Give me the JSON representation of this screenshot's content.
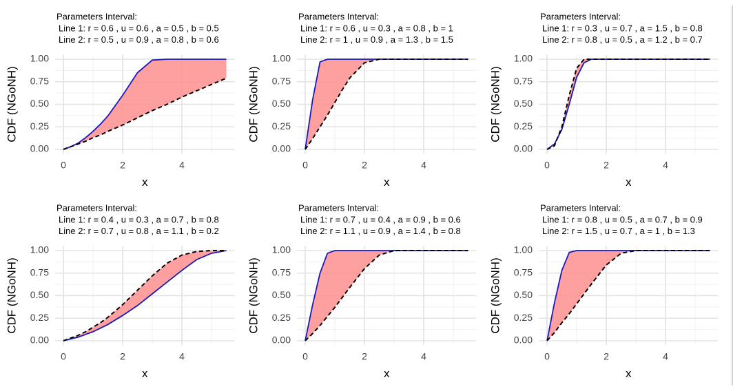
{
  "chart_data": [
    {
      "type": "line",
      "title": "Parameters Interval:",
      "subtitle_lines": [
        "Line 1: r = 0.6 , u = 0.6 , a = 0.5 , b = 0.5",
        "Line 2: r = 0.5 , u = 0.9 , a = 0.8 , b = 0.6"
      ],
      "xlabel": "x",
      "ylabel": "CDF (NGoNH)",
      "x": [
        0,
        0.25,
        0.5,
        0.75,
        1,
        1.25,
        1.5,
        2,
        2.5,
        3,
        3.5,
        4,
        4.5,
        5,
        5.5
      ],
      "series": [
        {
          "color": "#1a1ab8",
          "line_style": "solid",
          "values": [
            0,
            0.03,
            0.07,
            0.13,
            0.2,
            0.28,
            0.37,
            0.6,
            0.85,
            0.99,
            1,
            1,
            1,
            1,
            1
          ]
        },
        {
          "color": "#000000",
          "line_style": "dashed",
          "values": [
            0,
            0.03,
            0.06,
            0.09,
            0.13,
            0.16,
            0.2,
            0.27,
            0.35,
            0.43,
            0.5,
            0.58,
            0.65,
            0.72,
            0.79
          ]
        }
      ],
      "fill_color": "#ff8f8f",
      "xlim": [
        -0.275,
        5.775
      ],
      "ylim": [
        -0.05,
        1.05
      ],
      "xticks": [
        0,
        2,
        4
      ],
      "yticks": [
        {
          "value": 0,
          "label": "0.00"
        },
        {
          "value": 0.25,
          "label": "0.25"
        },
        {
          "value": 0.5,
          "label": "0.50"
        },
        {
          "value": 0.75,
          "label": "0.75"
        },
        {
          "value": 1,
          "label": "1.00"
        }
      ],
      "grid": true
    },
    {
      "type": "line",
      "title": "Parameters Interval:",
      "subtitle_lines": [
        "Line 1: r = 0.6 , u = 0.3 , a = 0.8 , b = 1",
        "Line 2: r = 1 , u = 0.9 , a = 1.3 , b = 1.5"
      ],
      "xlabel": "x",
      "ylabel": "CDF (NGoNH)",
      "x": [
        0,
        0.25,
        0.5,
        0.75,
        1,
        1.25,
        1.5,
        2,
        2.5,
        3,
        3.5,
        4,
        4.5,
        5,
        5.5
      ],
      "series": [
        {
          "color": "#1a1ab8",
          "line_style": "solid",
          "values": [
            0,
            0.55,
            0.97,
            1,
            1,
            1,
            1,
            1,
            1,
            1,
            1,
            1,
            1,
            1,
            1
          ]
        },
        {
          "color": "#000000",
          "line_style": "dashed",
          "values": [
            0,
            0.12,
            0.25,
            0.38,
            0.52,
            0.66,
            0.79,
            0.96,
            1,
            1,
            1,
            1,
            1,
            1,
            1
          ]
        }
      ],
      "fill_color": "#ff8f8f",
      "xlim": [
        -0.275,
        5.775
      ],
      "ylim": [
        -0.05,
        1.05
      ],
      "xticks": [
        0,
        2,
        4
      ],
      "yticks": [
        {
          "value": 0,
          "label": "0.00"
        },
        {
          "value": 0.25,
          "label": "0.25"
        },
        {
          "value": 0.5,
          "label": "0.50"
        },
        {
          "value": 0.75,
          "label": "0.75"
        },
        {
          "value": 1,
          "label": "1.00"
        }
      ],
      "grid": true
    },
    {
      "type": "line",
      "title": "Parameters Interval:",
      "subtitle_lines": [
        "Line 1: r = 0.3 , u = 0.7 , a = 1.5 , b = 0.8",
        "Line 2: r = 0.8 , u = 0.5 , a = 1.2 , b = 0.7"
      ],
      "xlabel": "x",
      "ylabel": "CDF (NGoNH)",
      "x": [
        0,
        0.25,
        0.5,
        0.75,
        1,
        1.25,
        1.5,
        2,
        2.5,
        3,
        3.5,
        4,
        4.5,
        5,
        5.5
      ],
      "series": [
        {
          "color": "#1a1ab8",
          "line_style": "solid",
          "values": [
            0,
            0.06,
            0.22,
            0.5,
            0.8,
            0.96,
            1,
            1,
            1,
            1,
            1,
            1,
            1,
            1,
            1
          ]
        },
        {
          "color": "#000000",
          "line_style": "dashed",
          "values": [
            0,
            0.04,
            0.25,
            0.6,
            0.9,
            1,
            1,
            1,
            1,
            1,
            1,
            1,
            1,
            1,
            1
          ]
        }
      ],
      "fill_color": "#ff8f8f",
      "xlim": [
        -0.275,
        5.775
      ],
      "ylim": [
        -0.05,
        1.05
      ],
      "xticks": [
        0,
        2,
        4
      ],
      "yticks": [
        {
          "value": 0,
          "label": "0.00"
        },
        {
          "value": 0.25,
          "label": "0.25"
        },
        {
          "value": 0.5,
          "label": "0.50"
        },
        {
          "value": 0.75,
          "label": "0.75"
        },
        {
          "value": 1,
          "label": "1.00"
        }
      ],
      "grid": true
    },
    {
      "type": "line",
      "title": "Parameters Interval:",
      "subtitle_lines": [
        "Line 1: r = 0.4 , u = 0.3 , a = 0.7 , b = 0.8",
        "Line 2: r = 0.7 , u = 0.8 , a = 1.1 , b = 0.2"
      ],
      "xlabel": "x",
      "ylabel": "CDF (NGoNH)",
      "x": [
        0,
        0.25,
        0.5,
        0.75,
        1,
        1.25,
        1.5,
        2,
        2.5,
        3,
        3.5,
        4,
        4.5,
        5,
        5.5
      ],
      "series": [
        {
          "color": "#1a1ab8",
          "line_style": "solid",
          "values": [
            0,
            0.02,
            0.04,
            0.07,
            0.1,
            0.14,
            0.18,
            0.28,
            0.39,
            0.52,
            0.65,
            0.78,
            0.9,
            0.97,
            1
          ]
        },
        {
          "color": "#000000",
          "line_style": "dashed",
          "values": [
            0,
            0.03,
            0.06,
            0.1,
            0.15,
            0.2,
            0.26,
            0.4,
            0.56,
            0.72,
            0.86,
            0.95,
            0.99,
            1,
            1
          ]
        }
      ],
      "fill_color": "#ff8f8f",
      "xlim": [
        -0.275,
        5.775
      ],
      "ylim": [
        -0.05,
        1.05
      ],
      "xticks": [
        0,
        2,
        4
      ],
      "yticks": [
        {
          "value": 0,
          "label": "0.00"
        },
        {
          "value": 0.25,
          "label": "0.25"
        },
        {
          "value": 0.5,
          "label": "0.50"
        },
        {
          "value": 0.75,
          "label": "0.75"
        },
        {
          "value": 1,
          "label": "1.00"
        }
      ],
      "grid": true
    },
    {
      "type": "line",
      "title": "Parameters Interval:",
      "subtitle_lines": [
        "Line 1: r = 0.7 , u = 0.4 , a = 0.9 , b = 0.6",
        "Line 2: r = 1.1 , u = 0.9 , a = 1.4 , b = 0.8"
      ],
      "xlabel": "x",
      "ylabel": "CDF (NGoNH)",
      "x": [
        0,
        0.25,
        0.5,
        0.75,
        1,
        1.25,
        1.5,
        2,
        2.5,
        3,
        3.5,
        4,
        4.5,
        5,
        5.5
      ],
      "series": [
        {
          "color": "#1a1ab8",
          "line_style": "solid",
          "values": [
            0,
            0.4,
            0.75,
            0.97,
            1,
            1,
            1,
            1,
            1,
            1,
            1,
            1,
            1,
            1,
            1
          ]
        },
        {
          "color": "#000000",
          "line_style": "dashed",
          "values": [
            0,
            0.08,
            0.17,
            0.27,
            0.37,
            0.48,
            0.59,
            0.8,
            0.95,
            1,
            1,
            1,
            1,
            1,
            1
          ]
        }
      ],
      "fill_color": "#ff8f8f",
      "xlim": [
        -0.275,
        5.775
      ],
      "ylim": [
        -0.05,
        1.05
      ],
      "xticks": [
        0,
        2,
        4
      ],
      "yticks": [
        {
          "value": 0,
          "label": "0.00"
        },
        {
          "value": 0.25,
          "label": "0.25"
        },
        {
          "value": 0.5,
          "label": "0.50"
        },
        {
          "value": 0.75,
          "label": "0.75"
        },
        {
          "value": 1,
          "label": "1.00"
        }
      ],
      "grid": true
    },
    {
      "type": "line",
      "title": "Parameters Interval:",
      "subtitle_lines": [
        "Line 1: r = 0.8 , u = 0.5 , a = 0.7 , b = 0.9",
        "Line 2: r = 1.5 , u = 0.7 , a = 1 , b = 1.3"
      ],
      "xlabel": "x",
      "ylabel": "CDF (NGoNH)",
      "x": [
        0,
        0.25,
        0.5,
        0.75,
        1,
        1.25,
        1.5,
        2,
        2.5,
        3,
        3.5,
        4,
        4.5,
        5,
        5.5
      ],
      "series": [
        {
          "color": "#1a1ab8",
          "line_style": "solid",
          "values": [
            0,
            0.42,
            0.78,
            0.98,
            1,
            1,
            1,
            1,
            1,
            1,
            1,
            1,
            1,
            1,
            1
          ]
        },
        {
          "color": "#000000",
          "line_style": "dashed",
          "values": [
            0,
            0.09,
            0.2,
            0.3,
            0.41,
            0.52,
            0.63,
            0.84,
            0.97,
            1,
            1,
            1,
            1,
            1,
            1
          ]
        }
      ],
      "fill_color": "#ff8f8f",
      "xlim": [
        -0.275,
        5.775
      ],
      "ylim": [
        -0.05,
        1.05
      ],
      "xticks": [
        0,
        2,
        4
      ],
      "yticks": [
        {
          "value": 0,
          "label": "0.00"
        },
        {
          "value": 0.25,
          "label": "0.25"
        },
        {
          "value": 0.5,
          "label": "0.50"
        },
        {
          "value": 0.75,
          "label": "0.75"
        },
        {
          "value": 1,
          "label": "1.00"
        }
      ],
      "grid": true
    }
  ]
}
